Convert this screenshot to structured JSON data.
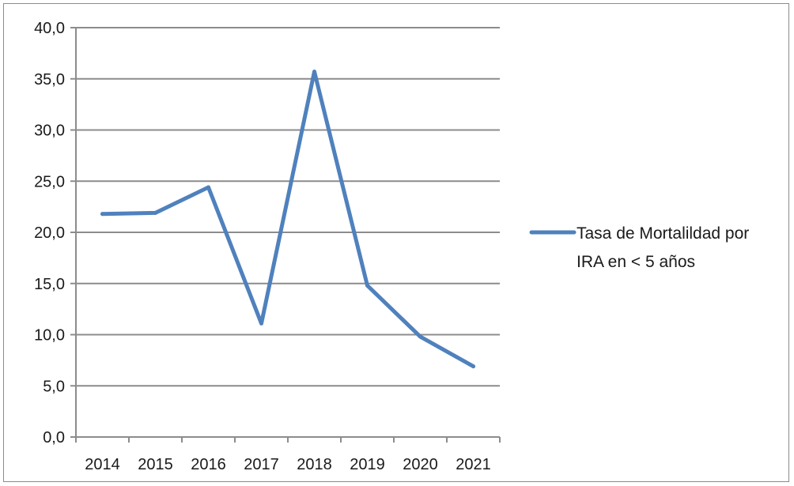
{
  "chart_data": {
    "type": "line",
    "title": "",
    "xlabel": "",
    "ylabel": "",
    "categories": [
      "2014",
      "2015",
      "2016",
      "2017",
      "2018",
      "2019",
      "2020",
      "2021"
    ],
    "series": [
      {
        "name": "Tasa de Mortalildad por IRA en < 5 años",
        "legend_lines": [
          "Tasa de Mortalildad por",
          "IRA en < 5 años"
        ],
        "values": [
          21.8,
          21.9,
          24.4,
          11.1,
          35.7,
          14.8,
          9.8,
          6.9
        ],
        "color": "#4f81bd"
      }
    ],
    "ylim": [
      0,
      40
    ],
    "yticks": [
      "0,0",
      "5,0",
      "10,0",
      "15,0",
      "20,0",
      "25,0",
      "30,0",
      "35,0",
      "40,0"
    ],
    "grid": true,
    "legend_position": "right"
  }
}
